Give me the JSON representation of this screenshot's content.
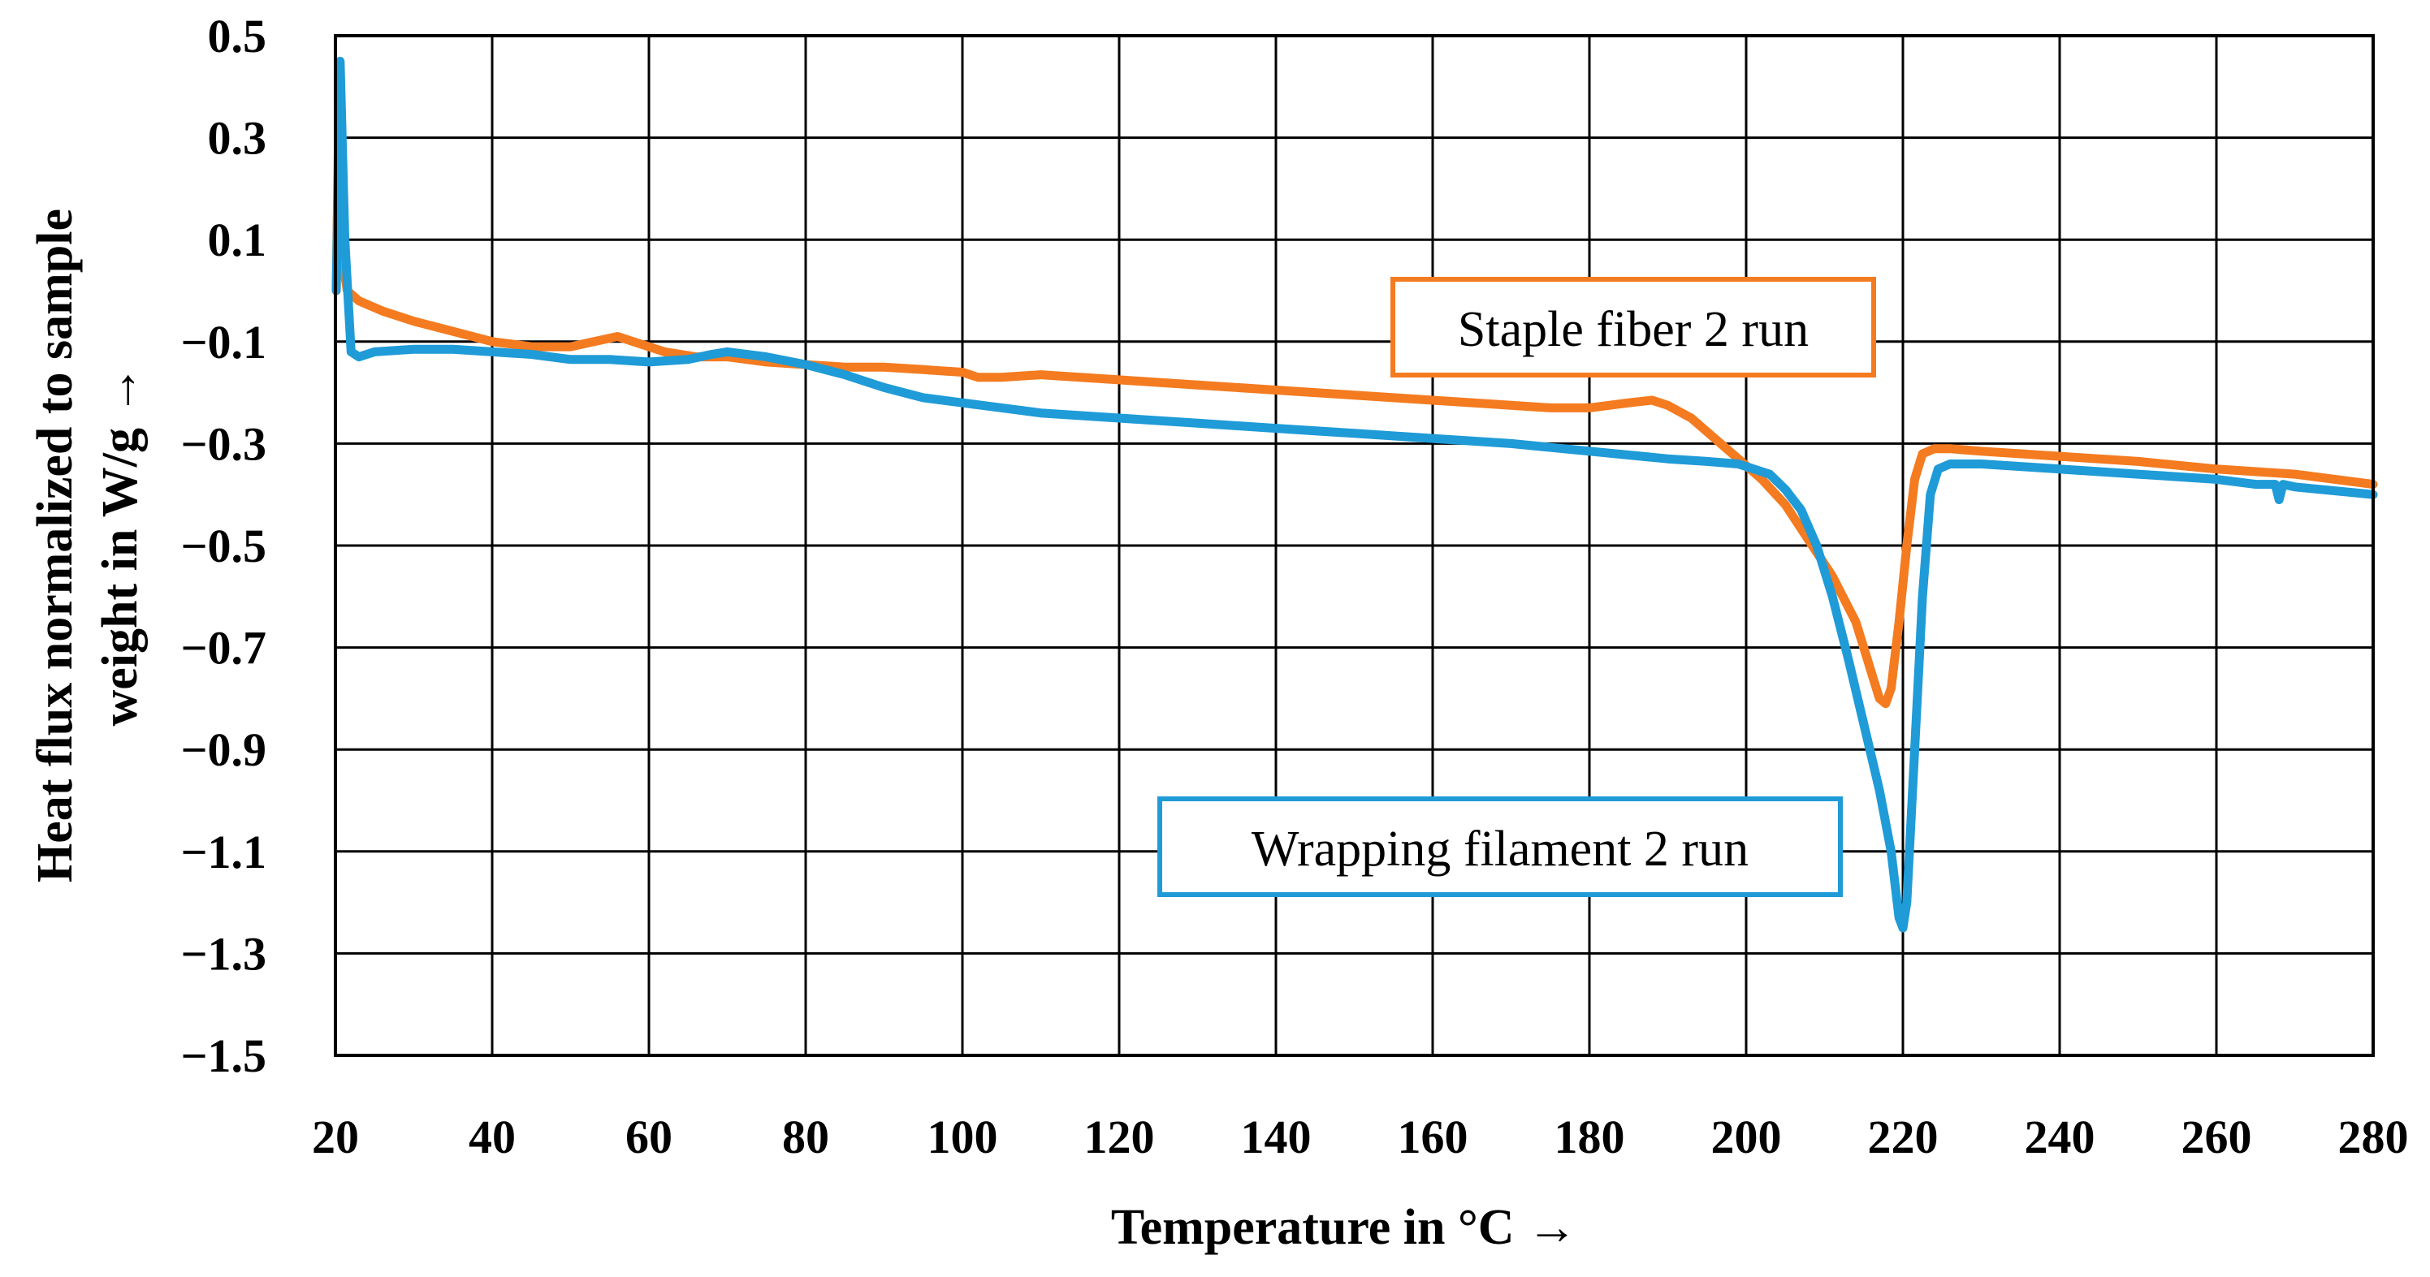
{
  "chart_data": {
    "type": "line",
    "xlabel": "Temperature in °C →",
    "ylabel_lines": [
      "Heat flux normalized to sample",
      "weight in W/g →"
    ],
    "xlim": [
      20,
      280
    ],
    "ylim": [
      -1.5,
      0.5
    ],
    "xticks": [
      20,
      40,
      60,
      80,
      100,
      120,
      140,
      160,
      180,
      200,
      220,
      240,
      260,
      280
    ],
    "yticks": [
      0.5,
      0.3,
      0.1,
      -0.1,
      -0.3,
      -0.5,
      -0.7,
      -0.9,
      -1.1,
      -1.3,
      -1.5
    ],
    "ytick_labels": [
      "0.5",
      "0.3",
      "0.1",
      "−0.1",
      "−0.3",
      "−0.5",
      "−0.7",
      "−0.9",
      "−1.1",
      "−1.3",
      "−1.5"
    ],
    "grid": true,
    "series": [
      {
        "name": "Staple fiber 2 run",
        "color": "#F47B20",
        "points": [
          [
            20.1,
            0.0
          ],
          [
            20.5,
            0.42
          ],
          [
            21,
            0.05
          ],
          [
            21.5,
            0.0
          ],
          [
            23,
            -0.02
          ],
          [
            26,
            -0.04
          ],
          [
            30,
            -0.06
          ],
          [
            35,
            -0.08
          ],
          [
            40,
            -0.1
          ],
          [
            45,
            -0.11
          ],
          [
            50,
            -0.11
          ],
          [
            53,
            -0.1
          ],
          [
            56,
            -0.09
          ],
          [
            58,
            -0.1
          ],
          [
            62,
            -0.12
          ],
          [
            66,
            -0.13
          ],
          [
            70,
            -0.13
          ],
          [
            75,
            -0.14
          ],
          [
            80,
            -0.145
          ],
          [
            85,
            -0.15
          ],
          [
            90,
            -0.15
          ],
          [
            95,
            -0.155
          ],
          [
            100,
            -0.16
          ],
          [
            102,
            -0.17
          ],
          [
            105,
            -0.17
          ],
          [
            110,
            -0.165
          ],
          [
            120,
            -0.175
          ],
          [
            130,
            -0.185
          ],
          [
            140,
            -0.195
          ],
          [
            150,
            -0.205
          ],
          [
            160,
            -0.215
          ],
          [
            170,
            -0.225
          ],
          [
            175,
            -0.23
          ],
          [
            180,
            -0.23
          ],
          [
            185,
            -0.22
          ],
          [
            188,
            -0.215
          ],
          [
            190,
            -0.225
          ],
          [
            193,
            -0.25
          ],
          [
            196,
            -0.29
          ],
          [
            199,
            -0.33
          ],
          [
            202,
            -0.37
          ],
          [
            205,
            -0.42
          ],
          [
            208,
            -0.49
          ],
          [
            211,
            -0.56
          ],
          [
            214,
            -0.65
          ],
          [
            216,
            -0.75
          ],
          [
            217,
            -0.8
          ],
          [
            217.8,
            -0.81
          ],
          [
            218.5,
            -0.78
          ],
          [
            219.5,
            -0.65
          ],
          [
            220.5,
            -0.5
          ],
          [
            221.5,
            -0.37
          ],
          [
            222.5,
            -0.32
          ],
          [
            224,
            -0.31
          ],
          [
            226,
            -0.31
          ],
          [
            230,
            -0.315
          ],
          [
            240,
            -0.325
          ],
          [
            250,
            -0.335
          ],
          [
            260,
            -0.35
          ],
          [
            270,
            -0.36
          ],
          [
            280,
            -0.38
          ]
        ]
      },
      {
        "name": "Wrapping filament 2 run",
        "color": "#1F9BD7",
        "points": [
          [
            20.1,
            0.0
          ],
          [
            20.6,
            0.45
          ],
          [
            21.2,
            0.1
          ],
          [
            22,
            -0.12
          ],
          [
            23,
            -0.13
          ],
          [
            25,
            -0.12
          ],
          [
            30,
            -0.115
          ],
          [
            35,
            -0.115
          ],
          [
            40,
            -0.12
          ],
          [
            45,
            -0.125
          ],
          [
            50,
            -0.135
          ],
          [
            55,
            -0.135
          ],
          [
            60,
            -0.14
          ],
          [
            65,
            -0.135
          ],
          [
            68,
            -0.125
          ],
          [
            70,
            -0.12
          ],
          [
            75,
            -0.13
          ],
          [
            80,
            -0.145
          ],
          [
            85,
            -0.165
          ],
          [
            90,
            -0.19
          ],
          [
            95,
            -0.21
          ],
          [
            100,
            -0.22
          ],
          [
            105,
            -0.23
          ],
          [
            110,
            -0.24
          ],
          [
            120,
            -0.25
          ],
          [
            130,
            -0.26
          ],
          [
            140,
            -0.27
          ],
          [
            150,
            -0.28
          ],
          [
            160,
            -0.29
          ],
          [
            170,
            -0.3
          ],
          [
            180,
            -0.315
          ],
          [
            190,
            -0.33
          ],
          [
            195,
            -0.335
          ],
          [
            199,
            -0.34
          ],
          [
            201,
            -0.35
          ],
          [
            203,
            -0.36
          ],
          [
            205,
            -0.39
          ],
          [
            207,
            -0.43
          ],
          [
            209,
            -0.5
          ],
          [
            211,
            -0.6
          ],
          [
            213,
            -0.72
          ],
          [
            215,
            -0.85
          ],
          [
            217,
            -0.98
          ],
          [
            218.5,
            -1.1
          ],
          [
            219.5,
            -1.23
          ],
          [
            220,
            -1.25
          ],
          [
            220.5,
            -1.2
          ],
          [
            221.5,
            -0.9
          ],
          [
            222.5,
            -0.6
          ],
          [
            223.5,
            -0.4
          ],
          [
            224.5,
            -0.35
          ],
          [
            226,
            -0.34
          ],
          [
            230,
            -0.34
          ],
          [
            240,
            -0.35
          ],
          [
            250,
            -0.36
          ],
          [
            260,
            -0.37
          ],
          [
            265,
            -0.38
          ],
          [
            267.5,
            -0.38
          ],
          [
            268,
            -0.41
          ],
          [
            268.5,
            -0.38
          ],
          [
            270,
            -0.385
          ],
          [
            280,
            -0.4
          ]
        ]
      }
    ],
    "annotations": [
      {
        "text": "Staple fiber 2 run",
        "series": "Staple fiber 2 run",
        "border_color": "#F47B20"
      },
      {
        "text": "Wrapping filament 2 run",
        "series": "Wrapping filament 2 run",
        "border_color": "#1F9BD7"
      }
    ]
  }
}
